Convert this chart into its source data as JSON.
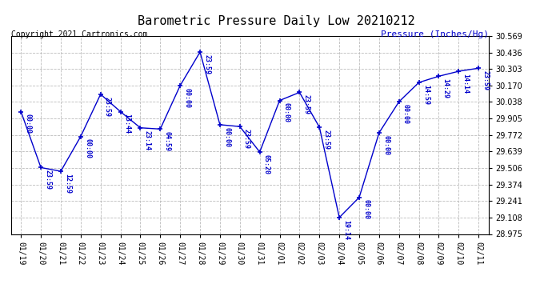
{
  "title": "Barometric Pressure Daily Low 20210212",
  "ylabel": "Pressure (Inches/Hg)",
  "copyright": "Copyright 2021 Cartronics.com",
  "line_color": "#0000cc",
  "background_color": "#ffffff",
  "grid_color": "#bbbbbb",
  "title_color": "#000000",
  "ylabel_color": "#0000cc",
  "copyright_color": "#000000",
  "ylim": [
    28.975,
    30.569
  ],
  "yticks": [
    28.975,
    29.108,
    29.241,
    29.374,
    29.506,
    29.639,
    29.772,
    29.905,
    30.038,
    30.17,
    30.303,
    30.436,
    30.569
  ],
  "dates": [
    "01/19",
    "01/20",
    "01/21",
    "01/22",
    "01/23",
    "01/24",
    "01/25",
    "01/26",
    "01/27",
    "01/28",
    "01/29",
    "01/30",
    "01/31",
    "02/01",
    "02/02",
    "02/03",
    "02/04",
    "02/05",
    "02/06",
    "02/07",
    "02/08",
    "02/09",
    "02/10",
    "02/11"
  ],
  "values": [
    29.96,
    29.51,
    29.48,
    29.76,
    30.1,
    29.96,
    29.83,
    29.82,
    30.17,
    30.44,
    29.855,
    29.84,
    29.635,
    30.05,
    30.115,
    29.835,
    29.108,
    29.27,
    29.79,
    30.04,
    30.195,
    30.245,
    30.285,
    30.31
  ],
  "point_labels": [
    "00:00",
    "23:59",
    "12:59",
    "00:00",
    "23:59",
    "13:44",
    "23:14",
    "04:59",
    "00:00",
    "23:59",
    "00:00",
    "23:59",
    "05:20",
    "00:00",
    "23:59",
    "23:59",
    "19:14",
    "00:00",
    "00:00",
    "00:00",
    "14:59",
    "14:29",
    "14:14",
    "23:59"
  ],
  "marker": "+",
  "marker_size": 5,
  "line_width": 1.0,
  "title_fontsize": 11,
  "label_fontsize": 6,
  "tick_fontsize": 7,
  "ylabel_fontsize": 8,
  "copyright_fontsize": 7
}
